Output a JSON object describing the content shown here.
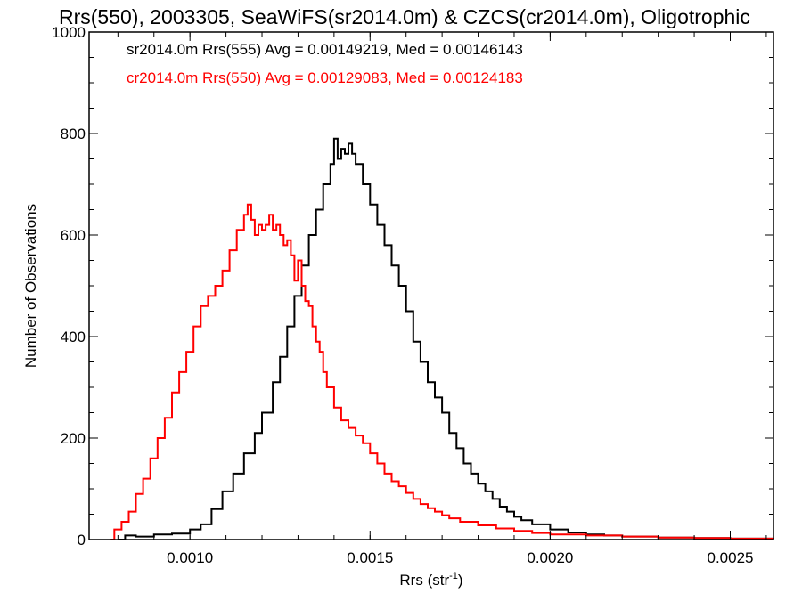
{
  "chart_data": {
    "type": "line",
    "step": true,
    "title": "Rrs(550), 2003305, SeaWiFS(sr2014.0m) & CZCS(cr2014.0m), Oligotrophic",
    "xlabel": "Rrs (str",
    "xlabel_sup": "-1",
    "xlabel_tail": ")",
    "ylabel": "Number of Observations",
    "xlim": [
      0.00072,
      0.00262
    ],
    "ylim": [
      0,
      1000
    ],
    "xticks": [
      0.001,
      0.0015,
      0.002,
      0.0025
    ],
    "xtick_labels": [
      "0.0010",
      "0.0015",
      "0.0020",
      "0.0025"
    ],
    "xminor_step": 0.0001,
    "yticks": [
      0,
      200,
      400,
      600,
      800,
      1000
    ],
    "ytick_labels": [
      "0",
      "200",
      "400",
      "600",
      "800",
      "1000"
    ],
    "yminor_step": 50,
    "grid": false,
    "legend_position": "top-left",
    "series": [
      {
        "name": "sr2014.0m Rrs(555) Avg = 0.00149219, Med = 0.00146143",
        "color": "#000000",
        "points": [
          [
            0.0008,
            0
          ],
          [
            0.00082,
            8
          ],
          [
            0.00085,
            6
          ],
          [
            0.0009,
            10
          ],
          [
            0.00095,
            12
          ],
          [
            0.001,
            20
          ],
          [
            0.00103,
            30
          ],
          [
            0.00106,
            60
          ],
          [
            0.00109,
            95
          ],
          [
            0.00112,
            130
          ],
          [
            0.00115,
            170
          ],
          [
            0.00118,
            210
          ],
          [
            0.0012,
            250
          ],
          [
            0.00123,
            310
          ],
          [
            0.00125,
            360
          ],
          [
            0.00127,
            420
          ],
          [
            0.00129,
            480
          ],
          [
            0.00131,
            540
          ],
          [
            0.00133,
            600
          ],
          [
            0.00135,
            650
          ],
          [
            0.00137,
            700
          ],
          [
            0.00139,
            740
          ],
          [
            0.0014,
            790
          ],
          [
            0.00141,
            750
          ],
          [
            0.00142,
            770
          ],
          [
            0.00143,
            760
          ],
          [
            0.00144,
            780
          ],
          [
            0.00145,
            760
          ],
          [
            0.00146,
            740
          ],
          [
            0.00148,
            700
          ],
          [
            0.0015,
            660
          ],
          [
            0.00152,
            620
          ],
          [
            0.00154,
            580
          ],
          [
            0.00156,
            540
          ],
          [
            0.00158,
            500
          ],
          [
            0.0016,
            450
          ],
          [
            0.00162,
            390
          ],
          [
            0.00164,
            350
          ],
          [
            0.00166,
            310
          ],
          [
            0.00168,
            280
          ],
          [
            0.0017,
            250
          ],
          [
            0.00172,
            210
          ],
          [
            0.00174,
            180
          ],
          [
            0.00176,
            150
          ],
          [
            0.00178,
            130
          ],
          [
            0.0018,
            110
          ],
          [
            0.00182,
            95
          ],
          [
            0.00184,
            80
          ],
          [
            0.00186,
            65
          ],
          [
            0.00188,
            55
          ],
          [
            0.0019,
            45
          ],
          [
            0.00192,
            38
          ],
          [
            0.00195,
            30
          ],
          [
            0.002,
            20
          ],
          [
            0.00205,
            14
          ],
          [
            0.0021,
            10
          ],
          [
            0.00215,
            8
          ],
          [
            0.0022,
            6
          ],
          [
            0.0023,
            4
          ],
          [
            0.0024,
            3
          ],
          [
            0.0025,
            2
          ],
          [
            0.00262,
            2
          ]
        ]
      },
      {
        "name": "cr2014.0m Rrs(550) Avg = 0.00129083, Med = 0.00124183",
        "color": "#ff0000",
        "points": [
          [
            0.00078,
            0
          ],
          [
            0.00079,
            20
          ],
          [
            0.00081,
            35
          ],
          [
            0.00083,
            55
          ],
          [
            0.00085,
            90
          ],
          [
            0.00087,
            120
          ],
          [
            0.00089,
            160
          ],
          [
            0.00091,
            200
          ],
          [
            0.00093,
            240
          ],
          [
            0.00095,
            290
          ],
          [
            0.00097,
            330
          ],
          [
            0.00099,
            370
          ],
          [
            0.00101,
            420
          ],
          [
            0.00103,
            460
          ],
          [
            0.00105,
            480
          ],
          [
            0.00107,
            500
          ],
          [
            0.00109,
            530
          ],
          [
            0.00111,
            570
          ],
          [
            0.00113,
            610
          ],
          [
            0.00115,
            640
          ],
          [
            0.00116,
            660
          ],
          [
            0.00117,
            630
          ],
          [
            0.00118,
            600
          ],
          [
            0.00119,
            620
          ],
          [
            0.0012,
            610
          ],
          [
            0.00121,
            620
          ],
          [
            0.00122,
            640
          ],
          [
            0.00123,
            610
          ],
          [
            0.00124,
            620
          ],
          [
            0.00125,
            600
          ],
          [
            0.00126,
            580
          ],
          [
            0.00127,
            590
          ],
          [
            0.00128,
            560
          ],
          [
            0.00129,
            510
          ],
          [
            0.0013,
            550
          ],
          [
            0.00131,
            500
          ],
          [
            0.00132,
            470
          ],
          [
            0.00133,
            460
          ],
          [
            0.00134,
            420
          ],
          [
            0.00135,
            390
          ],
          [
            0.00136,
            370
          ],
          [
            0.00137,
            330
          ],
          [
            0.00138,
            300
          ],
          [
            0.0014,
            260
          ],
          [
            0.00142,
            235
          ],
          [
            0.00144,
            220
          ],
          [
            0.00146,
            205
          ],
          [
            0.00148,
            190
          ],
          [
            0.0015,
            170
          ],
          [
            0.00152,
            150
          ],
          [
            0.00154,
            130
          ],
          [
            0.00156,
            115
          ],
          [
            0.00158,
            105
          ],
          [
            0.0016,
            92
          ],
          [
            0.00162,
            80
          ],
          [
            0.00164,
            70
          ],
          [
            0.00166,
            62
          ],
          [
            0.00168,
            55
          ],
          [
            0.0017,
            48
          ],
          [
            0.00172,
            42
          ],
          [
            0.00175,
            35
          ],
          [
            0.0018,
            28
          ],
          [
            0.00185,
            22
          ],
          [
            0.0019,
            17
          ],
          [
            0.00195,
            13
          ],
          [
            0.002,
            10
          ],
          [
            0.0021,
            8
          ],
          [
            0.0022,
            6
          ],
          [
            0.0023,
            4
          ],
          [
            0.0024,
            3
          ],
          [
            0.0025,
            2
          ],
          [
            0.00262,
            1
          ]
        ]
      }
    ]
  }
}
